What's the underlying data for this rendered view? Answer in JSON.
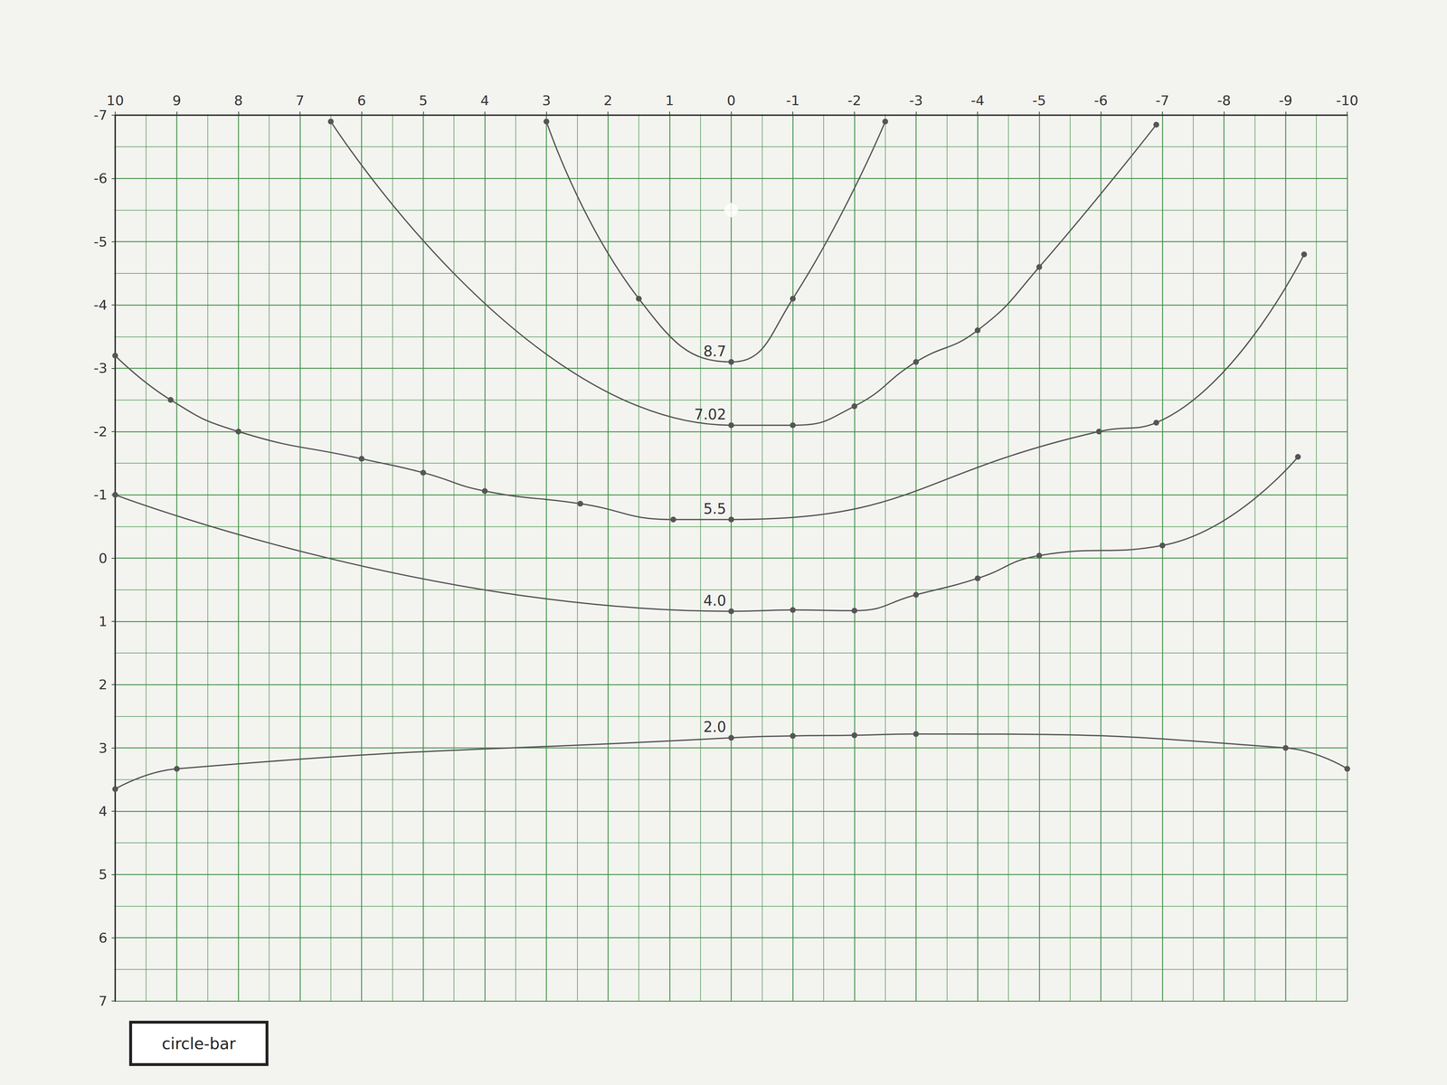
{
  "chart_data": {
    "type": "line",
    "annotation": "circle-bar",
    "xlim": [
      -10,
      10
    ],
    "xticks": [
      -10,
      -9,
      -8,
      -7,
      -6,
      -5,
      -4,
      -3,
      -2,
      -1,
      0,
      1,
      2,
      3,
      4,
      5,
      6,
      7,
      8,
      9,
      10
    ],
    "ylim": [
      -7,
      7
    ],
    "yticks": [
      -7,
      -6,
      -5,
      -4,
      -3,
      -2,
      -1,
      0,
      1,
      2,
      3,
      4,
      5,
      6,
      7
    ],
    "grid": true,
    "series": [
      {
        "name": "8.7",
        "color": "#555555",
        "marker": "circle",
        "line_style": "solid",
        "x": [
          3.0,
          1.5,
          0,
          -1.0,
          -2.5
        ],
        "values": [
          -6.9,
          -4.1,
          -3.1,
          -4.1,
          -6.9
        ]
      },
      {
        "type": "scatter",
        "color": "#555555",
        "marker": "open_circle",
        "x": [
          0
        ],
        "values": [
          -5.5
        ]
      },
      {
        "name": "7.02",
        "color": "#555555",
        "marker": "circle",
        "line_style": "solid",
        "x": [
          6.5,
          0,
          -1.0,
          -2.0,
          -3.0,
          -4.0,
          -5.0,
          -6.9
        ],
        "values": [
          -6.9,
          -2.1,
          -2.1,
          -2.4,
          -3.1,
          -3.6,
          -4.6,
          -6.85
        ]
      },
      {
        "name": "5.5",
        "color": "#555555",
        "marker": "circle",
        "line_style": "solid",
        "x": [
          10,
          9.1,
          8.0,
          6.0,
          5.0,
          4.0,
          2.45,
          0.94,
          0,
          -5.97,
          -6.9,
          -9.3
        ],
        "values": [
          -3.2,
          -2.5,
          -2.0,
          -1.57,
          -1.35,
          -1.06,
          -0.86,
          -0.61,
          -0.61,
          -2.0,
          -2.14,
          -4.8
        ]
      },
      {
        "name": "4.0",
        "color": "#555555",
        "marker": "circle",
        "line_style": "solid",
        "x": [
          10,
          0,
          -1.0,
          -2.0,
          -3.0,
          -4.0,
          -5.0,
          -7.0,
          -9.2
        ],
        "values": [
          -1.0,
          0.84,
          0.82,
          0.83,
          0.58,
          0.32,
          -0.04,
          -0.2,
          -1.6
        ]
      },
      {
        "name": "2.0",
        "color": "#555555",
        "marker": "circle",
        "line_style": "solid",
        "x": [
          10,
          9.0,
          0,
          -1.0,
          -2.0,
          -3.0,
          -9.0,
          -10
        ],
        "values": [
          3.65,
          3.33,
          2.84,
          2.81,
          2.8,
          2.78,
          3.0,
          3.33
        ]
      }
    ]
  }
}
